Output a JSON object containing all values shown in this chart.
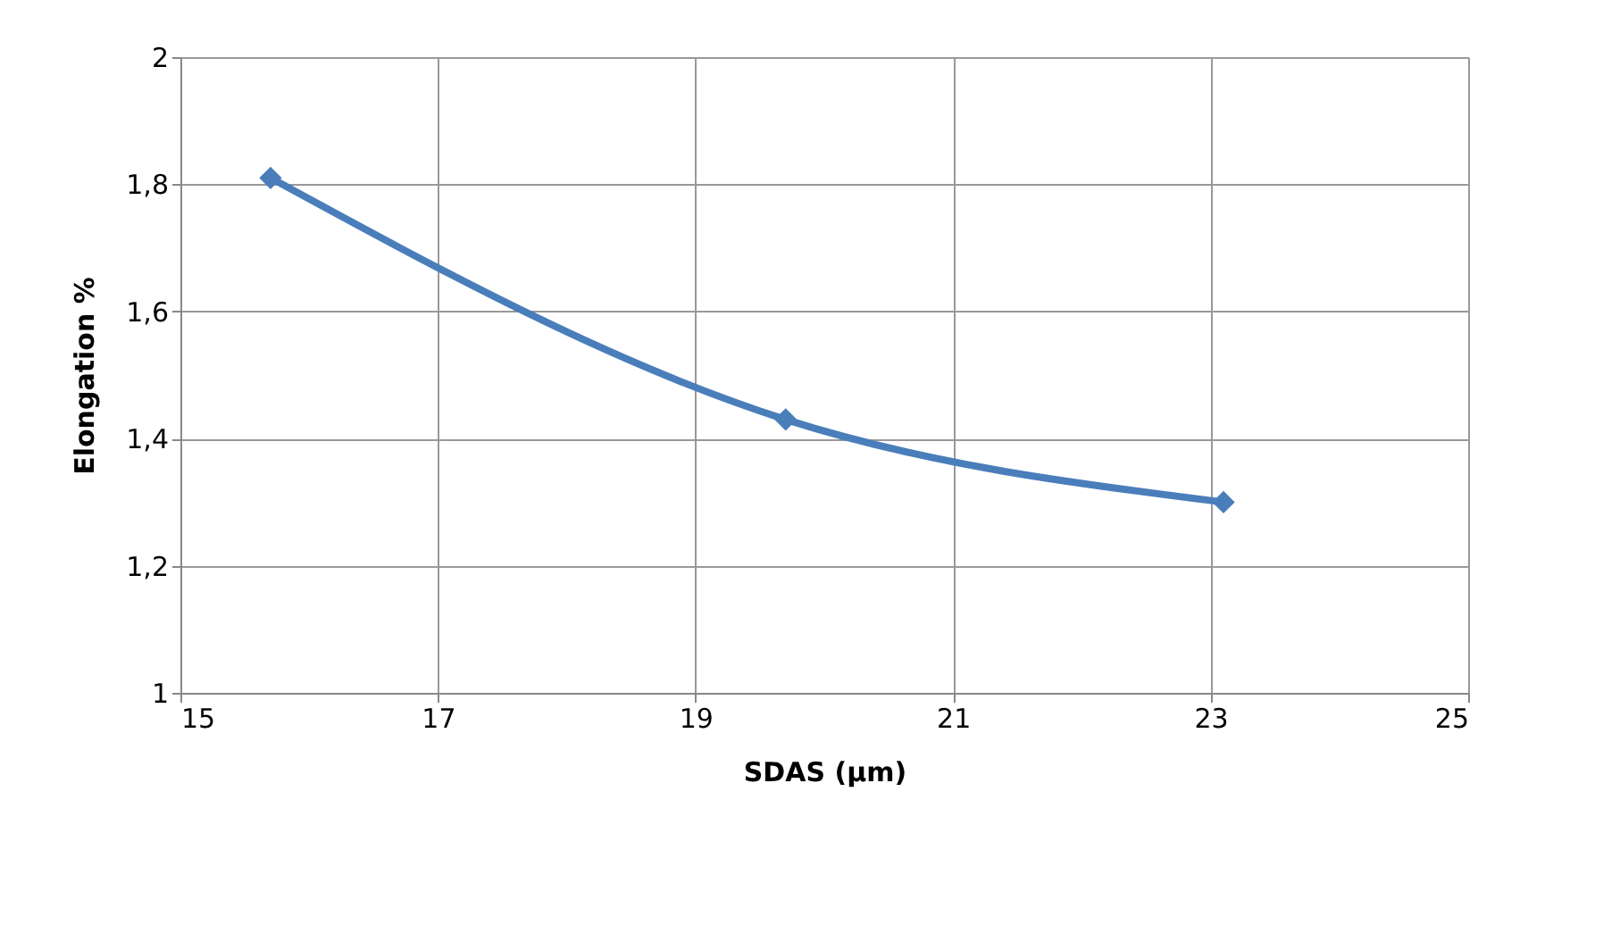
{
  "chart_data": {
    "type": "line",
    "xlabel": "SDAS (µm)",
    "ylabel": "Elongation %",
    "x": [
      15.7,
      19.7,
      23.1
    ],
    "series": [
      {
        "color": "#4a7ebb",
        "values": [
          1.81,
          1.43,
          1.3
        ]
      }
    ],
    "xlim": [
      15,
      25
    ],
    "xticks": [
      15,
      17,
      19,
      21,
      23,
      25
    ],
    "ylim": [
      1,
      2
    ],
    "yticks": [
      1,
      {
        "value": 1.2,
        "label": "1,2"
      },
      {
        "value": 1.4,
        "label": "1,4"
      },
      {
        "value": 1.6,
        "label": "1,6"
      },
      {
        "value": 1.8,
        "label": "1,8"
      },
      2
    ],
    "grid": true,
    "marker": "diamond",
    "line_style": "solid"
  }
}
